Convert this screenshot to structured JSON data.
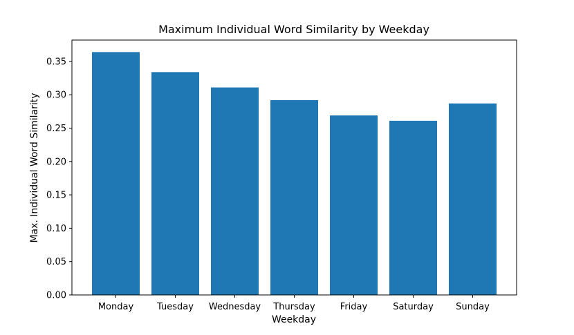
{
  "chart_data": {
    "type": "bar",
    "title": "Maximum Individual Word Similarity by Weekday",
    "xlabel": "Weekday",
    "ylabel": "Max. Individual Word Similarity",
    "categories": [
      "Monday",
      "Tuesday",
      "Wednesday",
      "Thursday",
      "Friday",
      "Saturday",
      "Sunday"
    ],
    "values": [
      0.364,
      0.334,
      0.311,
      0.292,
      0.269,
      0.261,
      0.287
    ],
    "ylim": [
      0,
      0.382
    ],
    "yticks": [
      0.0,
      0.05,
      0.1,
      0.15,
      0.2,
      0.25,
      0.3,
      0.35
    ],
    "ytick_labels": [
      "0.00",
      "0.05",
      "0.10",
      "0.15",
      "0.20",
      "0.25",
      "0.30",
      "0.35"
    ],
    "bar_color": "#1f77b4",
    "grid": false,
    "legend": "none"
  }
}
